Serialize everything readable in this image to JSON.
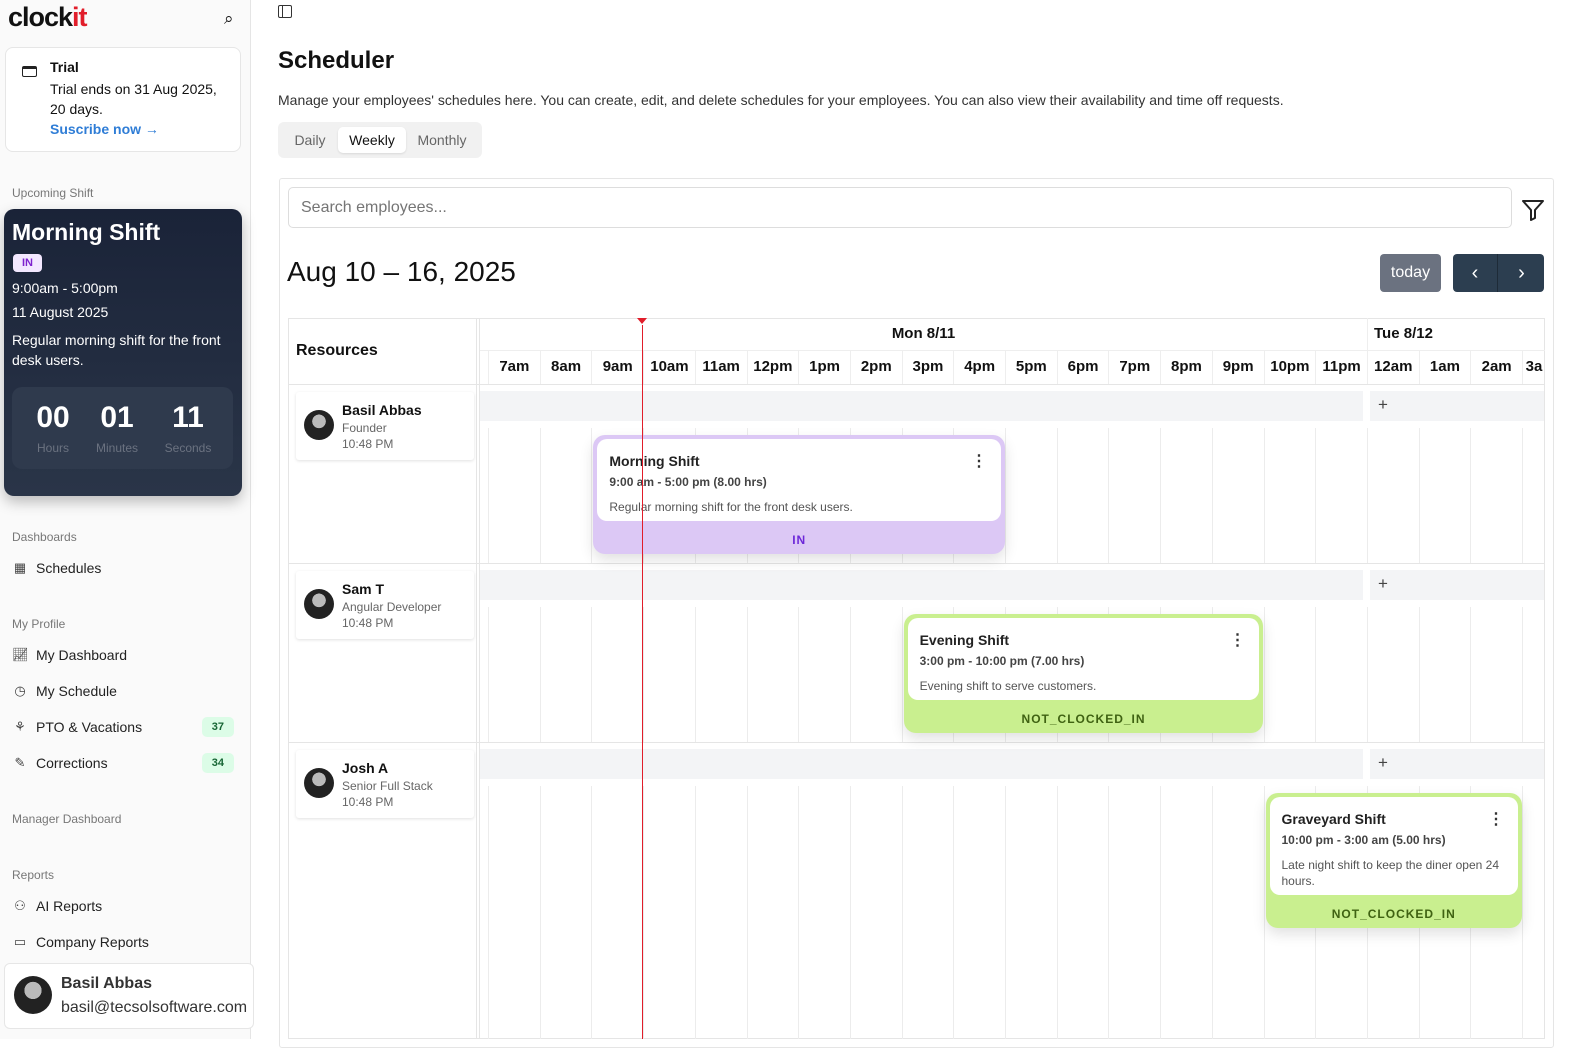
{
  "sidebar": {
    "logo": {
      "main": "clock",
      "accent": "it"
    },
    "trial": {
      "title": "Trial",
      "text": "Trial ends on 31 Aug 2025, 20 days.",
      "link": "Suscribe now →"
    },
    "upcoming_label": "Upcoming Shift",
    "upcoming": {
      "title": "Morning Shift",
      "status": "IN",
      "time": "9:00am - 5:00pm",
      "date": "11 August 2025",
      "description": "Regular morning shift for the front desk users.",
      "countdown": [
        {
          "value": "00",
          "label": "Hours"
        },
        {
          "value": "01",
          "label": "Minutes"
        },
        {
          "value": "11",
          "label": "Seconds"
        }
      ]
    },
    "sections": {
      "dashboards": "Dashboards",
      "my_profile": "My Profile",
      "manager": "Manager Dashboard",
      "reports": "Reports"
    },
    "items": {
      "schedules": "Schedules",
      "my_dashboard": "My Dashboard",
      "my_schedule": "My Schedule",
      "pto": "PTO & Vacations",
      "pto_count": "37",
      "corrections": "Corrections",
      "corrections_count": "34",
      "ai_reports": "AI Reports",
      "company_reports": "Company Reports"
    },
    "user": {
      "name": "Basil Abbas",
      "email": "basil@tecsolsoftware.com"
    }
  },
  "main": {
    "title": "Scheduler",
    "subtitle": "Manage your employees' schedules here. You can create, edit, and delete schedules for your employees. You can also view their availability and time off requests.",
    "tabs": [
      "Daily",
      "Weekly",
      "Monthly"
    ],
    "active_tab": "Weekly",
    "search_placeholder": "Search employees...",
    "date_range": "Aug 10 – 16, 2025",
    "today_label": "today",
    "resources_header": "Resources",
    "days": [
      "Mon 8/11",
      "Tue 8/12"
    ],
    "hours": [
      "7am",
      "8am",
      "9am",
      "10am",
      "11am",
      "12pm",
      "1pm",
      "2pm",
      "3pm",
      "4pm",
      "5pm",
      "6pm",
      "7pm",
      "8pm",
      "9pm",
      "10pm",
      "11pm",
      "12am",
      "1am",
      "2am",
      "3a"
    ],
    "add_symbol": "+",
    "resources": [
      {
        "name": "Basil Abbas",
        "role": "Founder",
        "time": "10:48 PM"
      },
      {
        "name": "Sam T",
        "role": "Angular Developer",
        "time": "10:48 PM"
      },
      {
        "name": "Josh A",
        "role": "Senior Full Stack",
        "time": "10:48 PM"
      }
    ],
    "events": [
      {
        "title": "Morning Shift",
        "hours": "9:00 am - 5:00 pm (8.00 hrs)",
        "description": "Regular morning shift for the front desk users.",
        "status": "IN",
        "start": 9,
        "end": 17,
        "color": "#dcc8f5",
        "status_color": "#6d28d9"
      },
      {
        "title": "Evening Shift",
        "hours": "3:00 pm - 10:00 pm (7.00 hrs)",
        "description": "Evening shift to serve customers.",
        "status": "NOT_CLOCKED_IN",
        "start": 15,
        "end": 22,
        "color": "#c9ef8f",
        "status_color": "#3f6212"
      },
      {
        "title": "Graveyard Shift",
        "hours": "10:00 pm - 3:00 am (5.00 hrs)",
        "description": "Late night shift to keep the diner open 24 hours.",
        "status": "NOT_CLOCKED_IN",
        "start": 22,
        "end": 27,
        "color": "#c9ef8f",
        "status_color": "#3f6212"
      }
    ],
    "now_hour": 10,
    "now_color": "#e11d2a"
  }
}
